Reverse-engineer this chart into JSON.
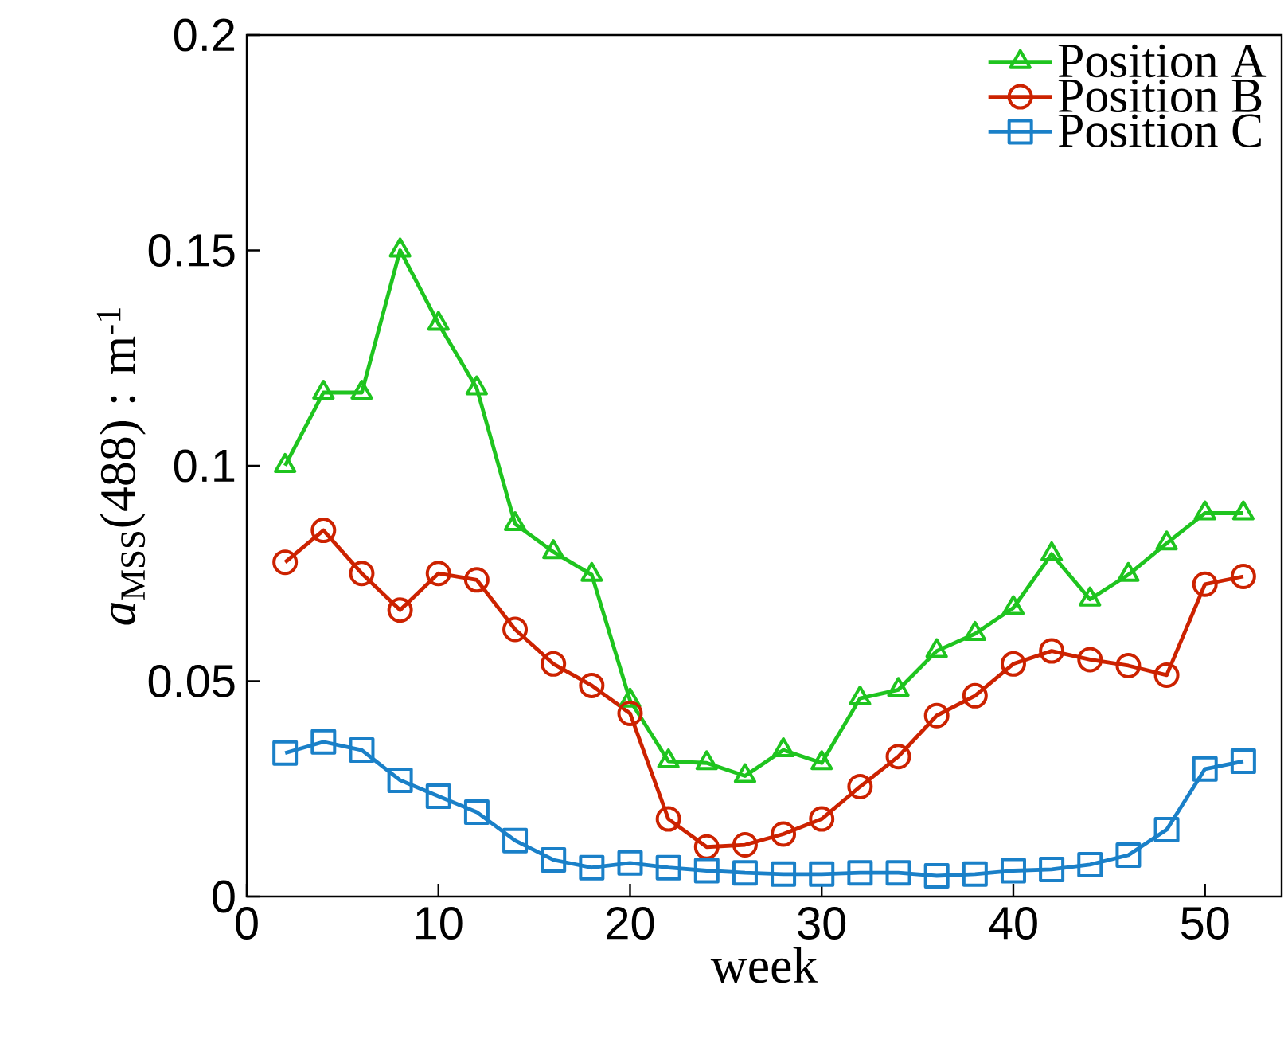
{
  "chart_data": {
    "type": "line",
    "xlabel": "week",
    "ylabel": "*a*$_{MSS}$(488) : m$^{-1}$",
    "x": [
      2,
      4,
      6,
      8,
      10,
      12,
      14,
      16,
      18,
      20,
      22,
      24,
      26,
      28,
      30,
      32,
      34,
      36,
      38,
      40,
      42,
      44,
      46,
      48,
      50,
      52
    ],
    "series": [
      {
        "name": "Position A",
        "color": "#1fc41f",
        "marker": "triangle",
        "values": [
          0.1,
          0.117,
          0.117,
          0.15,
          0.133,
          0.118,
          0.0865,
          0.08,
          0.0747,
          0.0455,
          0.0314,
          0.031,
          0.028,
          0.034,
          0.031,
          0.046,
          0.048,
          0.057,
          0.061,
          0.067,
          0.0795,
          0.069,
          0.0747,
          0.082,
          0.089,
          0.089
        ]
      },
      {
        "name": "Position B",
        "color": "#cc2200",
        "marker": "circle",
        "values": [
          0.0776,
          0.085,
          0.075,
          0.0665,
          0.075,
          0.0735,
          0.062,
          0.054,
          0.049,
          0.0425,
          0.018,
          0.0115,
          0.012,
          0.0145,
          0.018,
          0.0255,
          0.0325,
          0.042,
          0.0466,
          0.054,
          0.057,
          0.055,
          0.0536,
          0.0514,
          0.0725,
          0.0743
        ]
      },
      {
        "name": "Position C",
        "color": "#1a80c8",
        "marker": "square",
        "values": [
          0.0333,
          0.0359,
          0.034,
          0.027,
          0.0233,
          0.0196,
          0.013,
          0.0085,
          0.0067,
          0.0078,
          0.0067,
          0.006,
          0.0055,
          0.0052,
          0.0052,
          0.0055,
          0.0055,
          0.0048,
          0.0052,
          0.006,
          0.0063,
          0.0074,
          0.0096,
          0.0155,
          0.0296,
          0.0314
        ]
      }
    ],
    "xlim": [
      0,
      54
    ],
    "ylim": [
      0,
      0.2
    ],
    "xticks": [
      0,
      10,
      20,
      30,
      40,
      50
    ],
    "yticks": [
      0,
      0.05,
      0.1,
      0.15,
      0.2
    ],
    "legend": "top right",
    "line_style": "solid"
  }
}
